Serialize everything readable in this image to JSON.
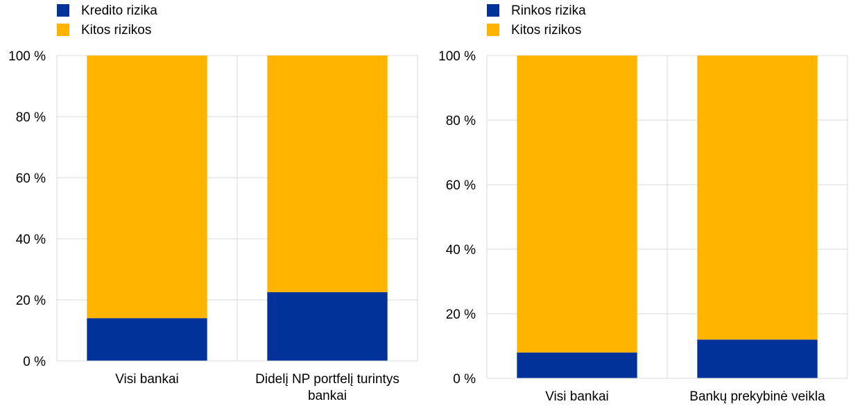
{
  "colors": {
    "blue": "#003299",
    "orange": "#ffb400",
    "grid": "#d9d9d9"
  },
  "chart_data": [
    {
      "type": "bar",
      "stacked": true,
      "categories": [
        [
          "Visi bankai"
        ],
        [
          "Didelį NP portfelį turintys",
          "bankai"
        ]
      ],
      "series": [
        {
          "name": "Kredito rizika",
          "color": "#003299",
          "values": [
            14,
            22.5
          ]
        },
        {
          "name": "Kitos rizikos",
          "color": "#ffb400",
          "values": [
            86,
            77.5
          ]
        }
      ],
      "ylim": [
        0,
        100
      ],
      "yticks": [
        "0 %",
        "20 %",
        "40 %",
        "60 %",
        "80 %",
        "100 %"
      ],
      "grid": true,
      "legend": "top-left"
    },
    {
      "type": "bar",
      "stacked": true,
      "categories": [
        [
          "Visi bankai"
        ],
        [
          "Bankų prekybinė veikla"
        ]
      ],
      "series": [
        {
          "name": "Rinkos rizika",
          "color": "#003299",
          "values": [
            8,
            12
          ]
        },
        {
          "name": "Kitos rizikos",
          "color": "#ffb400",
          "values": [
            92,
            88
          ]
        }
      ],
      "ylim": [
        0,
        100
      ],
      "yticks": [
        "0 %",
        "20 %",
        "40 %",
        "60 %",
        "80 %",
        "100 %"
      ],
      "grid": true,
      "legend": "top-left"
    }
  ]
}
